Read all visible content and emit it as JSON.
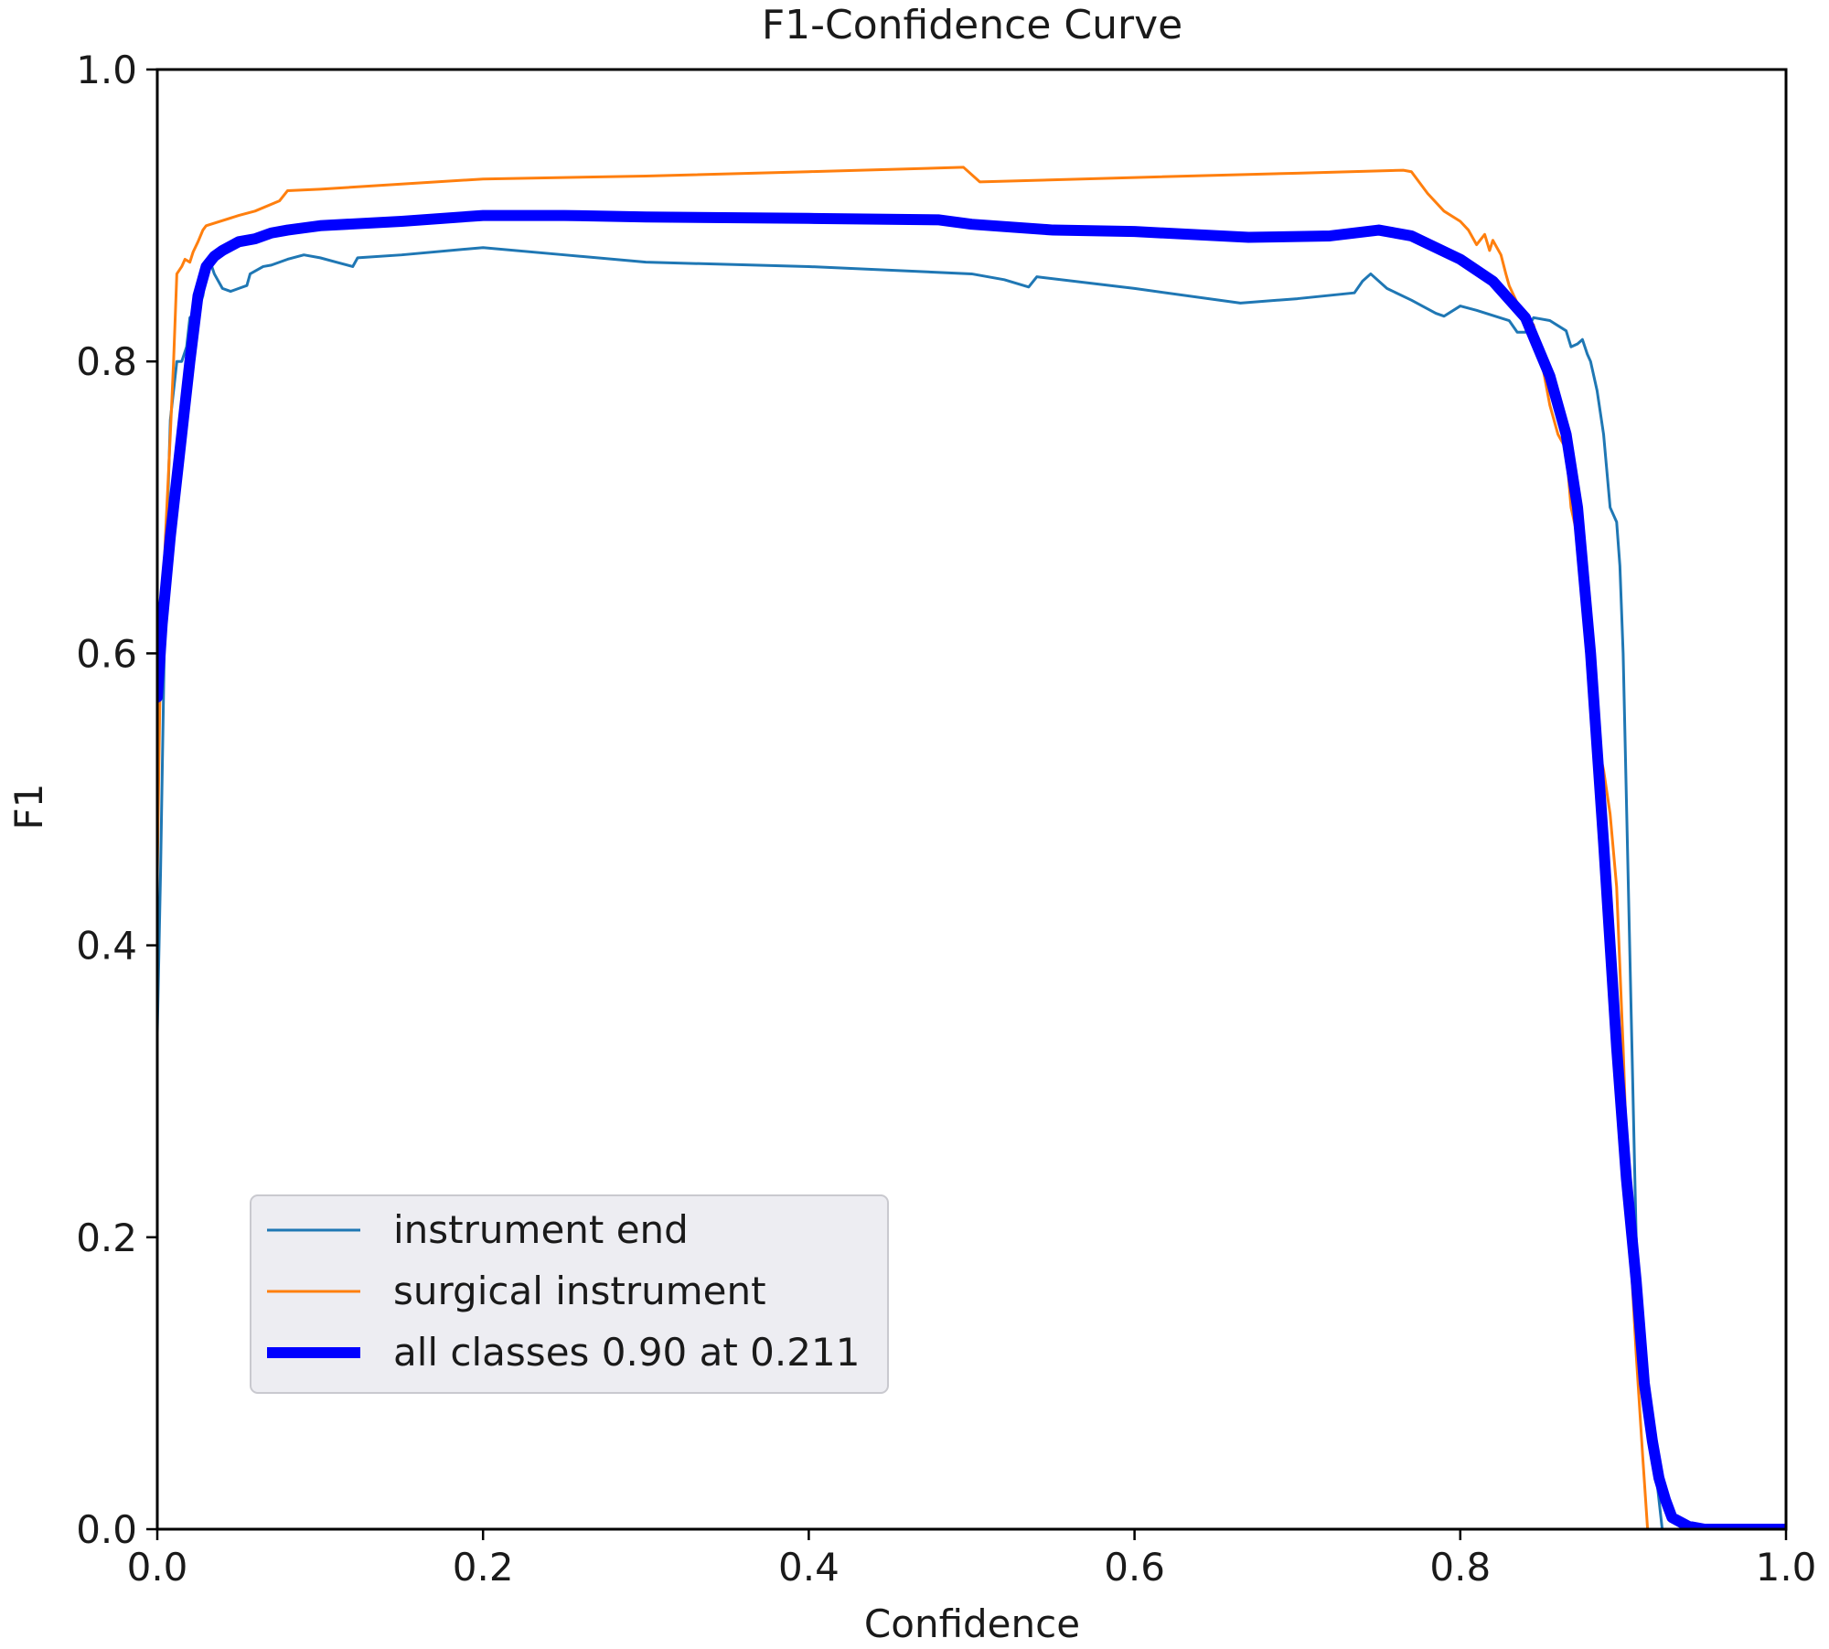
{
  "chart_data": {
    "type": "line",
    "title": "F1-Confidence Curve",
    "xlabel": "Confidence",
    "ylabel": "F1",
    "xlim": [
      0,
      1
    ],
    "ylim": [
      0,
      1
    ],
    "x_ticks": [
      "0.0",
      "0.2",
      "0.4",
      "0.6",
      "0.8",
      "1.0"
    ],
    "y_ticks": [
      "0.0",
      "0.2",
      "0.4",
      "0.6",
      "0.8",
      "1.0"
    ],
    "grid": false,
    "legend_position": "lower-left",
    "series": [
      {
        "name": "instrument end",
        "color": "#1f77b4",
        "points": [
          [
            0.0,
            0.34
          ],
          [
            0.002,
            0.45
          ],
          [
            0.005,
            0.65
          ],
          [
            0.008,
            0.76
          ],
          [
            0.012,
            0.8
          ],
          [
            0.015,
            0.8
          ],
          [
            0.018,
            0.81
          ],
          [
            0.02,
            0.83
          ],
          [
            0.025,
            0.835
          ],
          [
            0.028,
            0.845
          ],
          [
            0.03,
            0.86
          ],
          [
            0.032,
            0.87
          ],
          [
            0.035,
            0.86
          ],
          [
            0.04,
            0.85
          ],
          [
            0.045,
            0.848
          ],
          [
            0.05,
            0.85
          ],
          [
            0.055,
            0.852
          ],
          [
            0.057,
            0.86
          ],
          [
            0.065,
            0.865
          ],
          [
            0.07,
            0.866
          ],
          [
            0.08,
            0.87
          ],
          [
            0.09,
            0.873
          ],
          [
            0.1,
            0.871
          ],
          [
            0.11,
            0.868
          ],
          [
            0.12,
            0.865
          ],
          [
            0.123,
            0.871
          ],
          [
            0.15,
            0.873
          ],
          [
            0.2,
            0.878
          ],
          [
            0.25,
            0.873
          ],
          [
            0.3,
            0.868
          ],
          [
            0.4,
            0.865
          ],
          [
            0.5,
            0.86
          ],
          [
            0.52,
            0.856
          ],
          [
            0.535,
            0.851
          ],
          [
            0.54,
            0.858
          ],
          [
            0.6,
            0.85
          ],
          [
            0.665,
            0.84
          ],
          [
            0.7,
            0.843
          ],
          [
            0.735,
            0.847
          ],
          [
            0.74,
            0.855
          ],
          [
            0.745,
            0.86
          ],
          [
            0.755,
            0.85
          ],
          [
            0.77,
            0.842
          ],
          [
            0.785,
            0.833
          ],
          [
            0.79,
            0.831
          ],
          [
            0.8,
            0.838
          ],
          [
            0.81,
            0.835
          ],
          [
            0.83,
            0.828
          ],
          [
            0.835,
            0.82
          ],
          [
            0.84,
            0.82
          ],
          [
            0.845,
            0.83
          ],
          [
            0.855,
            0.828
          ],
          [
            0.865,
            0.821
          ],
          [
            0.868,
            0.81
          ],
          [
            0.872,
            0.812
          ],
          [
            0.875,
            0.815
          ],
          [
            0.878,
            0.805
          ],
          [
            0.88,
            0.8
          ],
          [
            0.884,
            0.78
          ],
          [
            0.888,
            0.75
          ],
          [
            0.892,
            0.7
          ],
          [
            0.896,
            0.69
          ],
          [
            0.898,
            0.66
          ],
          [
            0.9,
            0.6
          ],
          [
            0.902,
            0.5
          ],
          [
            0.905,
            0.35
          ],
          [
            0.908,
            0.2
          ],
          [
            0.91,
            0.15
          ],
          [
            0.915,
            0.1
          ],
          [
            0.918,
            0.06
          ],
          [
            0.921,
            0.03
          ],
          [
            0.924,
            0.0
          ]
        ]
      },
      {
        "name": "surgical instrument",
        "color": "#ff7f0e",
        "points": [
          [
            0.0,
            0.45
          ],
          [
            0.002,
            0.6
          ],
          [
            0.005,
            0.68
          ],
          [
            0.008,
            0.75
          ],
          [
            0.01,
            0.8
          ],
          [
            0.012,
            0.86
          ],
          [
            0.015,
            0.865
          ],
          [
            0.017,
            0.87
          ],
          [
            0.02,
            0.868
          ],
          [
            0.022,
            0.875
          ],
          [
            0.025,
            0.882
          ],
          [
            0.028,
            0.89
          ],
          [
            0.03,
            0.893
          ],
          [
            0.05,
            0.9
          ],
          [
            0.06,
            0.903
          ],
          [
            0.075,
            0.91
          ],
          [
            0.08,
            0.917
          ],
          [
            0.1,
            0.918
          ],
          [
            0.2,
            0.925
          ],
          [
            0.3,
            0.927
          ],
          [
            0.4,
            0.93
          ],
          [
            0.495,
            0.933
          ],
          [
            0.505,
            0.923
          ],
          [
            0.6,
            0.926
          ],
          [
            0.7,
            0.929
          ],
          [
            0.765,
            0.931
          ],
          [
            0.77,
            0.93
          ],
          [
            0.78,
            0.915
          ],
          [
            0.79,
            0.903
          ],
          [
            0.8,
            0.896
          ],
          [
            0.805,
            0.89
          ],
          [
            0.81,
            0.88
          ],
          [
            0.815,
            0.887
          ],
          [
            0.818,
            0.876
          ],
          [
            0.82,
            0.883
          ],
          [
            0.825,
            0.873
          ],
          [
            0.828,
            0.86
          ],
          [
            0.83,
            0.852
          ],
          [
            0.835,
            0.84
          ],
          [
            0.84,
            0.832
          ],
          [
            0.845,
            0.825
          ],
          [
            0.85,
            0.8
          ],
          [
            0.855,
            0.77
          ],
          [
            0.86,
            0.75
          ],
          [
            0.865,
            0.74
          ],
          [
            0.868,
            0.7
          ],
          [
            0.872,
            0.68
          ],
          [
            0.876,
            0.63
          ],
          [
            0.88,
            0.58
          ],
          [
            0.884,
            0.54
          ],
          [
            0.888,
            0.52
          ],
          [
            0.892,
            0.49
          ],
          [
            0.896,
            0.44
          ],
          [
            0.9,
            0.33
          ],
          [
            0.904,
            0.2
          ],
          [
            0.908,
            0.12
          ],
          [
            0.912,
            0.05
          ],
          [
            0.915,
            0.0
          ]
        ]
      },
      {
        "name": "all classes 0.90 at 0.211",
        "color": "#0000ff",
        "points": [
          [
            0.0,
            0.57
          ],
          [
            0.003,
            0.62
          ],
          [
            0.008,
            0.68
          ],
          [
            0.015,
            0.75
          ],
          [
            0.02,
            0.8
          ],
          [
            0.025,
            0.845
          ],
          [
            0.03,
            0.865
          ],
          [
            0.035,
            0.872
          ],
          [
            0.04,
            0.876
          ],
          [
            0.05,
            0.882
          ],
          [
            0.06,
            0.884
          ],
          [
            0.07,
            0.888
          ],
          [
            0.08,
            0.89
          ],
          [
            0.1,
            0.893
          ],
          [
            0.15,
            0.896
          ],
          [
            0.2,
            0.9
          ],
          [
            0.25,
            0.9
          ],
          [
            0.3,
            0.899
          ],
          [
            0.4,
            0.898
          ],
          [
            0.48,
            0.897
          ],
          [
            0.5,
            0.894
          ],
          [
            0.55,
            0.89
          ],
          [
            0.6,
            0.889
          ],
          [
            0.67,
            0.885
          ],
          [
            0.72,
            0.886
          ],
          [
            0.75,
            0.89
          ],
          [
            0.77,
            0.886
          ],
          [
            0.8,
            0.87
          ],
          [
            0.82,
            0.855
          ],
          [
            0.84,
            0.83
          ],
          [
            0.855,
            0.79
          ],
          [
            0.865,
            0.75
          ],
          [
            0.872,
            0.7
          ],
          [
            0.88,
            0.6
          ],
          [
            0.888,
            0.47
          ],
          [
            0.896,
            0.33
          ],
          [
            0.902,
            0.24
          ],
          [
            0.908,
            0.17
          ],
          [
            0.913,
            0.1
          ],
          [
            0.918,
            0.06
          ],
          [
            0.922,
            0.035
          ],
          [
            0.926,
            0.02
          ],
          [
            0.93,
            0.008
          ],
          [
            0.94,
            0.002
          ],
          [
            0.95,
            0.0
          ],
          [
            0.96,
            0.0
          ],
          [
            0.98,
            0.0
          ],
          [
            1.0,
            0.0
          ]
        ]
      }
    ]
  }
}
